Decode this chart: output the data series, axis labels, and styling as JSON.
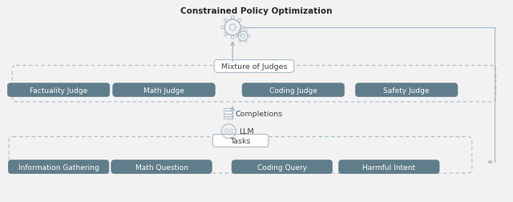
{
  "bg_color": "#f2f2f2",
  "title": "Constrained Policy Optimization",
  "title_fontsize": 7.5,
  "title_bold": true,
  "judges_boxes": [
    "Factuality Judge",
    "Math Judge",
    "Coding Judge",
    "Safety Judge"
  ],
  "tasks_boxes": [
    "Information Gathering",
    "Math Question",
    "Coding Query",
    "Harmful Intent"
  ],
  "box_color_dark": "#607d8b",
  "box_color_light": "#ffffff",
  "box_text_dark": "#ffffff",
  "box_text_light": "#444444",
  "dashed_border_color": "#aabcc7",
  "arrow_color": "#aabcc7",
  "line_color": "#aabcc7",
  "mixture_label": "Mixture of Judges",
  "tasks_label": "Tasks",
  "completions_label": "Completions",
  "llm_label": "LLM",
  "font_size_box": 6.5,
  "font_size_label": 6.8,
  "font_size_title": 7.5
}
